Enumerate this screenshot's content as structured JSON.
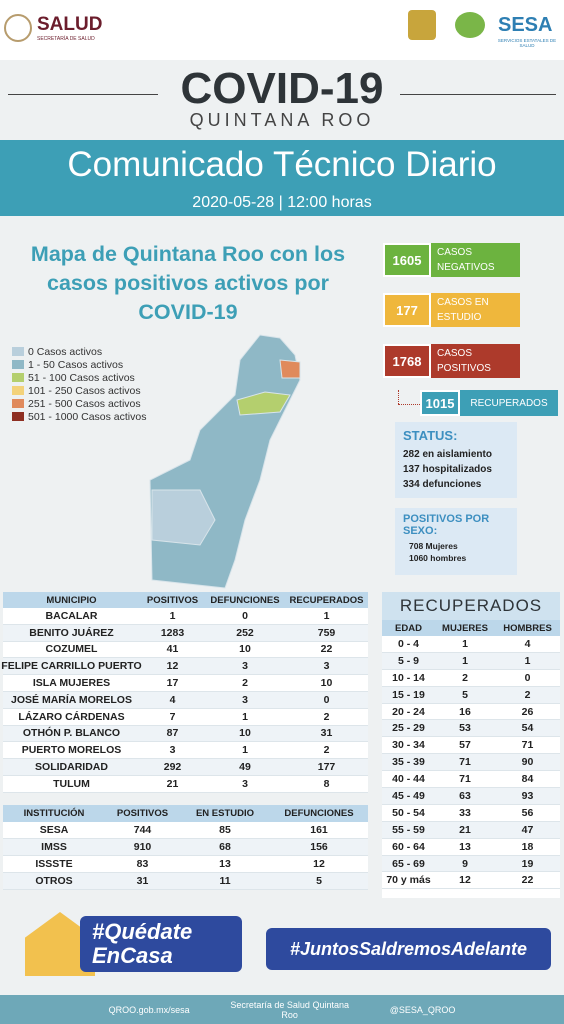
{
  "header": {
    "left_logo": "SALUD",
    "left_logo_sub": "SECRETARÍA DE SALUD",
    "right_logo": "SESA",
    "right_logo_sub": "SERVICIOS ESTATALES DE SALUD"
  },
  "title": "COVID-19",
  "subtitle": "QUINTANA ROO",
  "banner": {
    "title": "Comunicado Técnico Diario",
    "date": "2020-05-28 | 12:00 horas"
  },
  "map": {
    "title": "Mapa de Quintana Roo con los casos positivos activos por COVID-19",
    "legend": [
      {
        "label": "0 Casos activos",
        "color": "#b9cfdc"
      },
      {
        "label": "1 - 50 Casos activos",
        "color": "#8fb8c6"
      },
      {
        "label": "51 - 100 Casos activos",
        "color": "#b4cf6e"
      },
      {
        "label": "101 - 250 Casos activos",
        "color": "#f3d27a"
      },
      {
        "label": "251 - 500 Casos activos",
        "color": "#e08a5c"
      },
      {
        "label": "501 - 1000 Casos activos",
        "color": "#8e2f22"
      }
    ]
  },
  "cases": [
    {
      "value": 1605,
      "label": "CASOS NEGATIVOS",
      "color": "#6cb33f"
    },
    {
      "value": 177,
      "label": "CASOS EN ESTUDIO",
      "color": "#efb73c"
    },
    {
      "value": 1768,
      "label": "CASOS POSITIVOS",
      "color": "#ad3a2b"
    }
  ],
  "recovered": {
    "value": 1015,
    "label": "RECUPERADOS"
  },
  "status": {
    "title": "STATUS:",
    "lines": [
      "282 en aislamiento",
      "137 hospitalizados",
      "334 defunciones"
    ]
  },
  "sex": {
    "title": "POSITIVOS POR SEXO:",
    "lines": [
      "708 Mujeres",
      "1060 hombres"
    ]
  },
  "municipios": {
    "header": [
      "MUNICIPIO",
      "POSITIVOS",
      "DEFUNCIONES",
      "RECUPERADOS"
    ],
    "rows": [
      [
        "BACALAR",
        1,
        0,
        1
      ],
      [
        "BENITO JUÁREZ",
        1283,
        252,
        759
      ],
      [
        "COZUMEL",
        41,
        10,
        22
      ],
      [
        "FELIPE CARRILLO PUERTO",
        12,
        3,
        3
      ],
      [
        "ISLA MUJERES",
        17,
        2,
        10
      ],
      [
        "JOSÉ MARÍA MORELOS",
        4,
        3,
        0
      ],
      [
        "LÁZARO CÁRDENAS",
        7,
        1,
        2
      ],
      [
        "OTHÓN P. BLANCO",
        87,
        10,
        31
      ],
      [
        "PUERTO MORELOS",
        3,
        1,
        2
      ],
      [
        "SOLIDARIDAD",
        292,
        49,
        177
      ],
      [
        "TULUM",
        21,
        3,
        8
      ]
    ]
  },
  "instituciones": {
    "header": [
      "INSTITUCIÓN",
      "POSITIVOS",
      "EN ESTUDIO",
      "DEFUNCIONES"
    ],
    "rows": [
      [
        "SESA",
        744,
        85,
        161
      ],
      [
        "IMSS",
        910,
        68,
        156
      ],
      [
        "ISSSTE",
        83,
        13,
        12
      ],
      [
        "OTROS",
        31,
        11,
        5
      ]
    ]
  },
  "recuperados": {
    "title": "RECUPERADOS",
    "header": [
      "EDAD",
      "MUJERES",
      "HOMBRES"
    ],
    "rows": [
      [
        "0 - 4",
        1,
        4
      ],
      [
        "5 - 9",
        1,
        1
      ],
      [
        "10 - 14",
        2,
        0
      ],
      [
        "15 - 19",
        5,
        2
      ],
      [
        "20 - 24",
        16,
        26
      ],
      [
        "25 - 29",
        53,
        54
      ],
      [
        "30 - 34",
        57,
        71
      ],
      [
        "35 - 39",
        71,
        90
      ],
      [
        "40 - 44",
        71,
        84
      ],
      [
        "45 - 49",
        63,
        93
      ],
      [
        "50 - 54",
        33,
        56
      ],
      [
        "55 - 59",
        21,
        47
      ],
      [
        "60 - 64",
        13,
        18
      ],
      [
        "65 - 69",
        9,
        19
      ],
      [
        "70 y más",
        12,
        22
      ]
    ]
  },
  "campaign": {
    "stay_home_1": "#Quédate",
    "stay_home_2": "EnCasa",
    "together": "#JuntosSaldremosAdelante"
  },
  "footer": [
    "QROO.gob.mx/sesa",
    "Secretaría de Salud Quintana Roo",
    "@SESA_QROO"
  ]
}
